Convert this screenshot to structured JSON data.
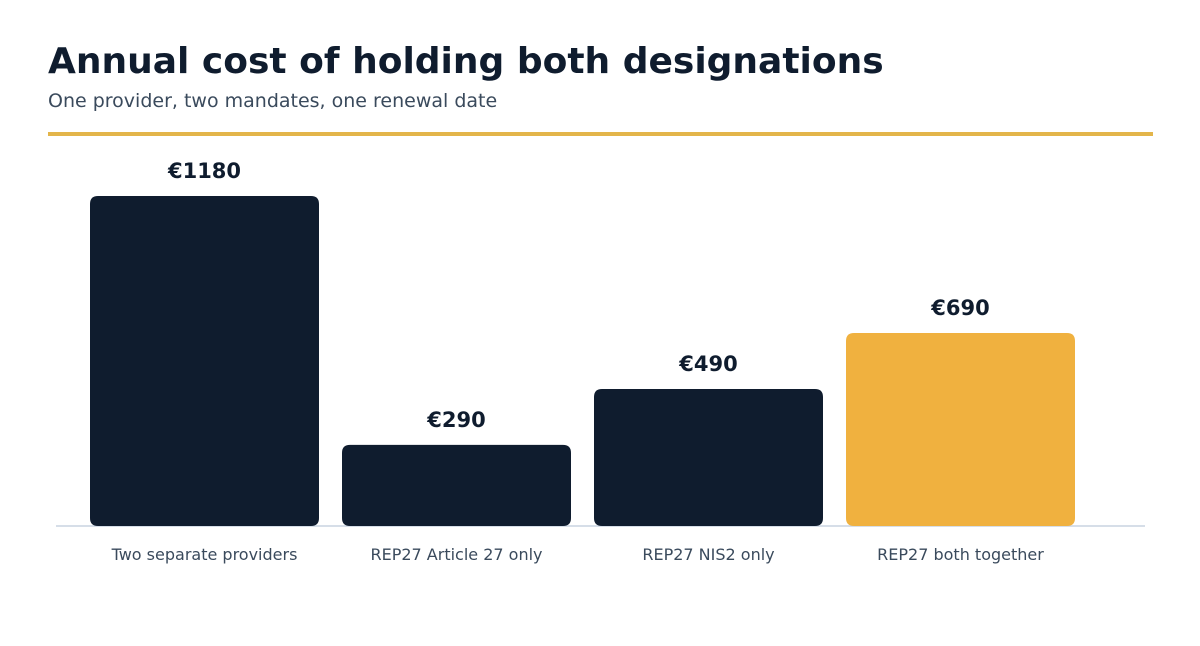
{
  "header": {
    "title": "Annual cost of holding both designations",
    "subtitle": "One provider, two mandates, one renewal date"
  },
  "colors": {
    "dark_bar": "#0f1c2e",
    "highlight_bar": "#f0b13f",
    "accent_rule": "#e3b54a",
    "baseline": "#c9d4e0"
  },
  "chart_data": {
    "type": "bar",
    "categories": [
      "Two separate providers",
      "REP27 Article 27 only",
      "REP27 NIS2 only",
      "REP27 both together"
    ],
    "values": [
      1180,
      290,
      490,
      690
    ],
    "data_labels": [
      "€1180",
      "€290",
      "€490",
      "€690"
    ],
    "highlighted_category": "REP27 both together",
    "ylim": [
      0,
      1180
    ],
    "grid": false,
    "legend": "none"
  }
}
